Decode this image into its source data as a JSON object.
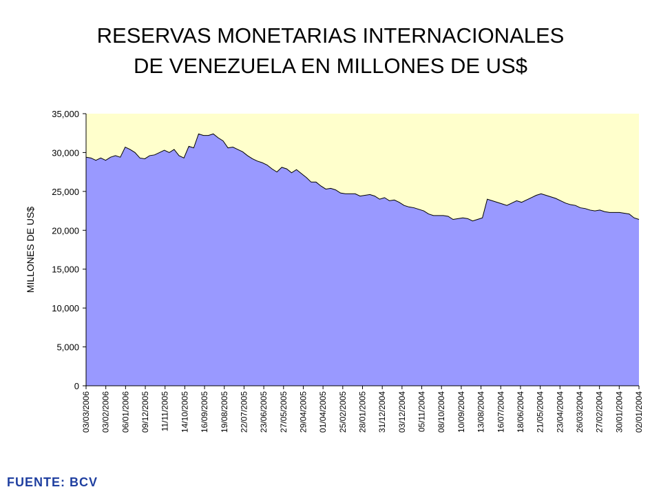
{
  "title_line1": "RESERVAS MONETARIAS INTERNACIONALES",
  "title_line2": "DE VENEZUELA EN MILLONES DE US$",
  "source": "FUENTE: BCV",
  "chart_data": {
    "type": "area",
    "title": "RESERVAS MONETARIAS INTERNACIONALES DE VENEZUELA EN MILLONES DE US$",
    "ylabel": "MILLONES DE US$",
    "xlabel": "",
    "ylim": [
      0,
      35000
    ],
    "y_ticks": [
      0,
      5000,
      10000,
      15000,
      20000,
      25000,
      30000,
      35000
    ],
    "y_tick_labels": [
      "0",
      "5,000",
      "10,000",
      "15,000",
      "20,000",
      "25,000",
      "30,000",
      "35,000"
    ],
    "x_tick_labels": [
      "03/03/2006",
      "03/02/2006",
      "06/01/2006",
      "09/12/2005",
      "11/11/2005",
      "14/10/2005",
      "16/09/2005",
      "19/08/2005",
      "22/07/2005",
      "23/06/2005",
      "27/05/2005",
      "29/04/2005",
      "01/04/2005",
      "25/02/2005",
      "28/01/2005",
      "31/12/2004",
      "03/12/2004",
      "05/11/2004",
      "08/10/2004",
      "10/09/2004",
      "13/08/2004",
      "16/07/2004",
      "18/06/2004",
      "21/05/2004",
      "23/04/2004",
      "26/03/2004",
      "27/02/2004",
      "30/01/2004",
      "02/01/2004"
    ],
    "x_order": "reverse-chronological",
    "colors": {
      "area": "#9999ff",
      "plot_background": "#ffffcc"
    },
    "series": [
      {
        "values": [
          29400,
          29300,
          29000,
          29300,
          29000,
          29400,
          29600,
          29400,
          30700,
          30400,
          30000,
          29300,
          29200,
          29600,
          29700,
          30000,
          30300,
          30000,
          30400,
          29600,
          29300,
          30800,
          30600,
          32400,
          32200,
          32200,
          32400,
          31900,
          31500,
          30600,
          30700,
          30400,
          30100,
          29600,
          29200,
          28900,
          28700,
          28400,
          27900,
          27500,
          28100,
          27900,
          27400,
          27800,
          27300,
          26800,
          26200,
          26200,
          25700,
          25300,
          25400,
          25200,
          24800,
          24700,
          24700,
          24700,
          24400,
          24500,
          24600,
          24400,
          24000,
          24200,
          23800,
          23900,
          23600,
          23200,
          23000,
          22900,
          22700,
          22500,
          22100,
          21900,
          21900,
          21900,
          21800,
          21400,
          21500,
          21600,
          21500,
          21200,
          21400,
          21600,
          24000,
          23800,
          23600,
          23400,
          23200,
          23500,
          23800,
          23600,
          23900,
          24200,
          24500,
          24700,
          24500,
          24300,
          24100,
          23800,
          23500,
          23300,
          23200,
          22900,
          22800,
          22600,
          22500,
          22600,
          22400,
          22300,
          22300,
          22300,
          22200,
          22100,
          21600,
          21400
        ]
      }
    ],
    "grid": false,
    "legend": "none"
  }
}
